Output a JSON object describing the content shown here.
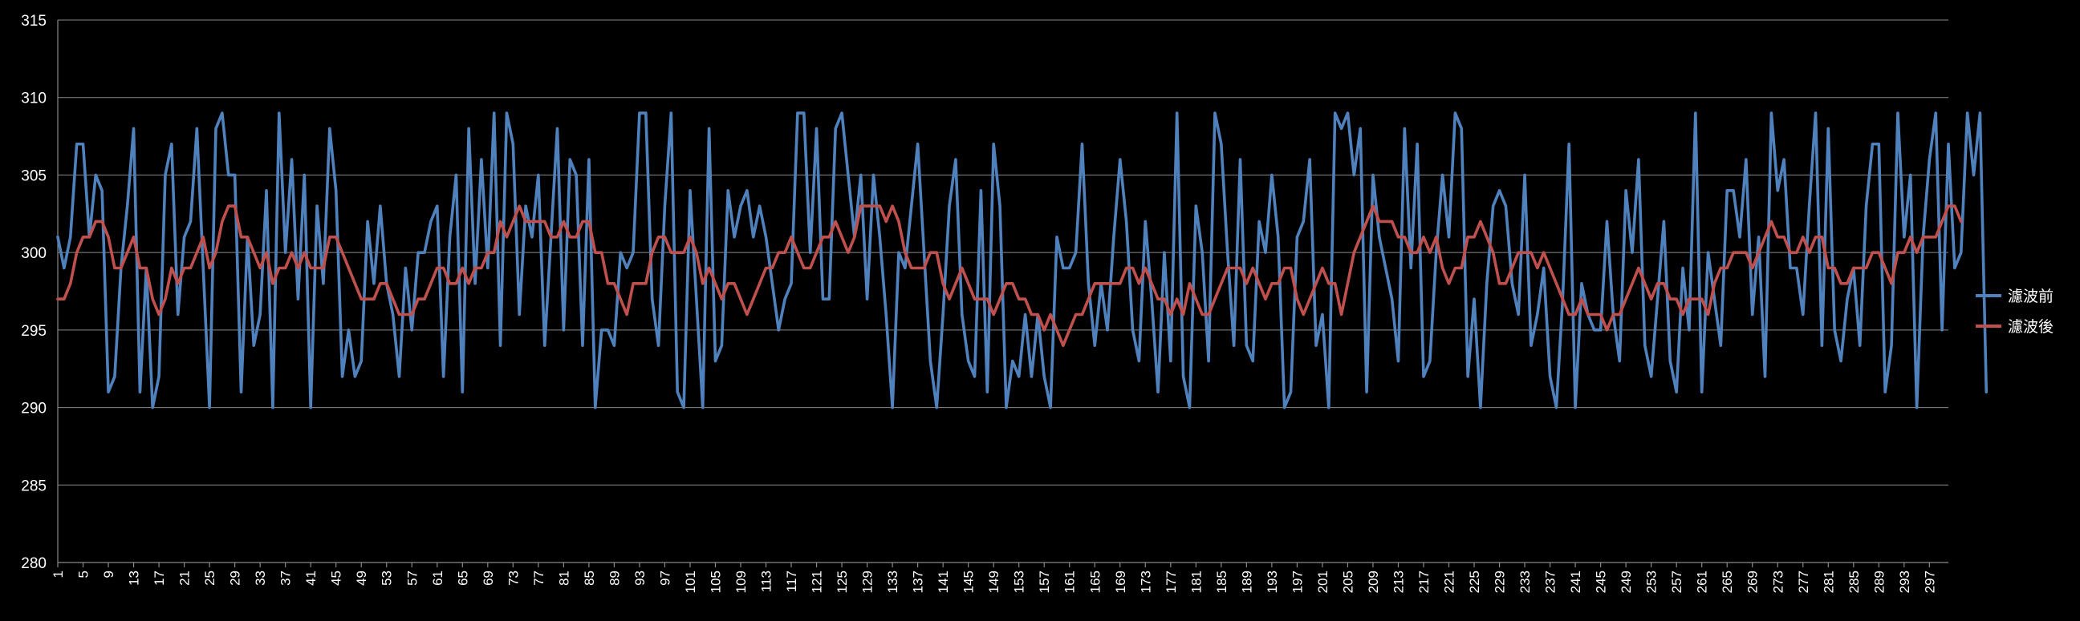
{
  "chart_data": {
    "type": "line",
    "title": "",
    "xlabel": "",
    "ylabel": "",
    "ylim": [
      280,
      315
    ],
    "y_ticks": [
      280,
      285,
      290,
      295,
      300,
      305,
      310,
      315
    ],
    "x_range": [
      1,
      300
    ],
    "x_tick_labels": [
      "1",
      "5",
      "9",
      "13",
      "17",
      "21",
      "25",
      "29",
      "33",
      "37",
      "41",
      "45",
      "49",
      "53",
      "57",
      "61",
      "65",
      "69",
      "73",
      "77",
      "81",
      "85",
      "89",
      "93",
      "97",
      "101",
      "105",
      "109",
      "113",
      "117",
      "121",
      "125",
      "129",
      "133",
      "137",
      "141",
      "145",
      "149",
      "153",
      "157",
      "161",
      "165",
      "169",
      "173",
      "177",
      "181",
      "185",
      "189",
      "193",
      "197",
      "201",
      "205",
      "209",
      "213",
      "217",
      "221",
      "225",
      "229",
      "233",
      "237",
      "241",
      "245",
      "249",
      "253",
      "257",
      "261",
      "265",
      "269",
      "273",
      "277",
      "281",
      "285",
      "289",
      "293",
      "297"
    ],
    "grid": true,
    "legend_position": "right",
    "series": [
      {
        "name": "濾波前",
        "color": "#4f81bd",
        "values": [
          301,
          299,
          301,
          307,
          307,
          301,
          305,
          304,
          291,
          292,
          299,
          303,
          308,
          291,
          299,
          290,
          292,
          305,
          307,
          296,
          301,
          302,
          308,
          299,
          290,
          308,
          309,
          305,
          305,
          291,
          301,
          294,
          296,
          304,
          290,
          309,
          300,
          306,
          297,
          305,
          290,
          303,
          298,
          308,
          304,
          292,
          295,
          292,
          293,
          302,
          298,
          303,
          298,
          296,
          292,
          299,
          295,
          300,
          300,
          302,
          303,
          292,
          301,
          305,
          291,
          308,
          298,
          306,
          299,
          309,
          294,
          309,
          307,
          296,
          303,
          301,
          305,
          294,
          301,
          308,
          295,
          306,
          305,
          294,
          306,
          290,
          295,
          295,
          294,
          300,
          299,
          300,
          309,
          309,
          297,
          294,
          303,
          309,
          291,
          290,
          304,
          297,
          290,
          308,
          293,
          294,
          304,
          301,
          303,
          304,
          301,
          303,
          301,
          298,
          295,
          297,
          298,
          309,
          309,
          300,
          308,
          297,
          297,
          308,
          309,
          305,
          301,
          305,
          297,
          305,
          301,
          296,
          290,
          300,
          299,
          303,
          307,
          300,
          293,
          290,
          296,
          303,
          306,
          296,
          293,
          292,
          304,
          291,
          307,
          303,
          290,
          293,
          292,
          296,
          292,
          296,
          292,
          290,
          301,
          299,
          299,
          300,
          307,
          298,
          294,
          298,
          295,
          301,
          306,
          302,
          295,
          293,
          302,
          297,
          291,
          300,
          293,
          309,
          292,
          290,
          303,
          300,
          293,
          309,
          307,
          300,
          294,
          306,
          294,
          293,
          302,
          300,
          305,
          301,
          290,
          291,
          301,
          302,
          306,
          294,
          296,
          290,
          309,
          308,
          309,
          305,
          308,
          291,
          305,
          301,
          299,
          297,
          293,
          308,
          299,
          307,
          292,
          293,
          300,
          305,
          301,
          309,
          308,
          292,
          297,
          290,
          298,
          303,
          304,
          303,
          298,
          296,
          305,
          294,
          296,
          299,
          292,
          290,
          297,
          307,
          290,
          298,
          296,
          295,
          295,
          302,
          296,
          293,
          304,
          300,
          306,
          294,
          292,
          297,
          302,
          293,
          291,
          299,
          295,
          309,
          291,
          300,
          297,
          294,
          304,
          304,
          301,
          306,
          296,
          301,
          292,
          309,
          304,
          306,
          299,
          299,
          296,
          303,
          309,
          294,
          308,
          295,
          293,
          297,
          299,
          294,
          303,
          307,
          307,
          291,
          294,
          309,
          301,
          305,
          290,
          301,
          306,
          309,
          295,
          307,
          299,
          300,
          309,
          305,
          309,
          291
        ]
      },
      {
        "name": "濾波後",
        "color": "#c0504d",
        "values": [
          297,
          297,
          298,
          300,
          301,
          301,
          302,
          302,
          301,
          299,
          299,
          300,
          301,
          299,
          299,
          297,
          296,
          297,
          299,
          298,
          299,
          299,
          300,
          301,
          299,
          300,
          302,
          303,
          303,
          301,
          301,
          300,
          299,
          300,
          298,
          299,
          299,
          300,
          299,
          300,
          299,
          299,
          299,
          301,
          301,
          300,
          299,
          298,
          297,
          297,
          297,
          298,
          298,
          297,
          296,
          296,
          296,
          297,
          297,
          298,
          299,
          299,
          298,
          298,
          299,
          298,
          299,
          299,
          300,
          300,
          302,
          301,
          302,
          303,
          302,
          302,
          302,
          302,
          301,
          301,
          302,
          301,
          301,
          302,
          302,
          300,
          300,
          298,
          298,
          297,
          296,
          298,
          298,
          298,
          300,
          301,
          301,
          300,
          300,
          300,
          301,
          300,
          298,
          299,
          298,
          297,
          298,
          298,
          297,
          296,
          297,
          298,
          299,
          299,
          300,
          300,
          301,
          300,
          299,
          299,
          300,
          301,
          301,
          302,
          301,
          300,
          301,
          303,
          303,
          303,
          303,
          302,
          303,
          302,
          300,
          299,
          299,
          299,
          300,
          300,
          298,
          297,
          298,
          299,
          298,
          297,
          297,
          297,
          296,
          297,
          298,
          298,
          297,
          297,
          296,
          296,
          295,
          296,
          295,
          294,
          295,
          296,
          296,
          297,
          298,
          298,
          298,
          298,
          298,
          299,
          299,
          298,
          299,
          298,
          297,
          297,
          296,
          297,
          296,
          298,
          297,
          296,
          296,
          297,
          298,
          299,
          299,
          299,
          298,
          299,
          298,
          297,
          298,
          298,
          299,
          299,
          297,
          296,
          297,
          298,
          299,
          298,
          298,
          296,
          298,
          300,
          301,
          302,
          303,
          302,
          302,
          302,
          301,
          301,
          300,
          300,
          301,
          300,
          301,
          299,
          298,
          299,
          299,
          301,
          301,
          302,
          301,
          300,
          298,
          298,
          299,
          300,
          300,
          300,
          299,
          300,
          299,
          298,
          297,
          296,
          296,
          297,
          296,
          296,
          296,
          295,
          296,
          296,
          297,
          298,
          299,
          298,
          297,
          298,
          298,
          297,
          297,
          296,
          297,
          297,
          297,
          296,
          298,
          299,
          299,
          300,
          300,
          300,
          299,
          300,
          301,
          302,
          301,
          301,
          300,
          300,
          301,
          300,
          301,
          301,
          299,
          299,
          298,
          298,
          299,
          299,
          299,
          300,
          300,
          299,
          298,
          300,
          300,
          301,
          300,
          301,
          301,
          301,
          302,
          303,
          303,
          302
        ]
      }
    ]
  }
}
